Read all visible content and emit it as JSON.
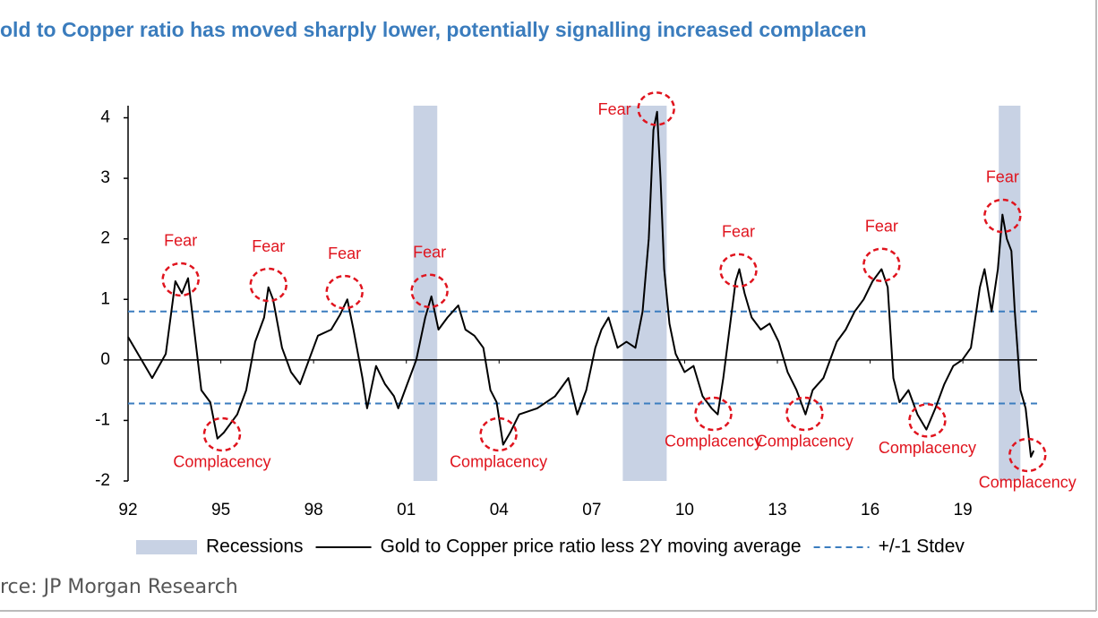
{
  "chart_data": {
    "type": "line",
    "title": "old to Copper ratio has moved sharply lower, potentially signalling increased complacen",
    "xlim": [
      1992,
      2021.4
    ],
    "xticks": [
      {
        "value": 1992,
        "label": "92"
      },
      {
        "value": 1995,
        "label": "95"
      },
      {
        "value": 1998,
        "label": "98"
      },
      {
        "value": 2001,
        "label": "01"
      },
      {
        "value": 2004,
        "label": "04"
      },
      {
        "value": 2007,
        "label": "07"
      },
      {
        "value": 2010,
        "label": "10"
      },
      {
        "value": 2013,
        "label": "13"
      },
      {
        "value": 2016,
        "label": "16"
      },
      {
        "value": 2019,
        "label": "19"
      }
    ],
    "ylim": [
      -2,
      4.2
    ],
    "yticks": [
      -2,
      -1,
      0,
      1,
      2,
      3,
      4
    ],
    "recessions": {
      "name": "Recessions",
      "color": "#c8d2e4",
      "ranges": [
        [
          2001.23,
          2002.0
        ],
        [
          2008.0,
          2009.42
        ],
        [
          2020.16,
          2020.86
        ]
      ]
    },
    "reference_lines": {
      "name": "+/-1 Stdev",
      "color": "#3b7dbf",
      "values": [
        0.8,
        -0.72
      ]
    },
    "series": [
      {
        "name": "Gold to Copper price ratio less 2Y moving average",
        "color": "#000000",
        "x": [
          1992.0,
          1992.78,
          1993.22,
          1993.53,
          1993.74,
          1993.94,
          1994.37,
          1994.66,
          1994.89,
          1995.1,
          1995.53,
          1995.82,
          1996.11,
          1996.4,
          1996.54,
          1996.69,
          1996.98,
          1997.27,
          1997.56,
          1997.85,
          1998.14,
          1998.57,
          1998.86,
          1999.09,
          1999.29,
          1999.58,
          1999.73,
          2000.02,
          2000.31,
          2000.6,
          2000.74,
          2001.03,
          2001.32,
          2001.61,
          2001.81,
          2002.04,
          2002.33,
          2002.68,
          2002.91,
          2003.2,
          2003.49,
          2003.72,
          2003.92,
          2004.13,
          2004.36,
          2004.65,
          2005.23,
          2005.81,
          2006.24,
          2006.53,
          2006.82,
          2007.11,
          2007.31,
          2007.54,
          2007.83,
          2008.12,
          2008.41,
          2008.64,
          2008.84,
          2008.99,
          2009.11,
          2009.22,
          2009.34,
          2009.51,
          2009.71,
          2010.0,
          2010.29,
          2010.58,
          2010.87,
          2011.07,
          2011.25,
          2011.45,
          2011.65,
          2011.77,
          2011.94,
          2012.17,
          2012.46,
          2012.75,
          2013.04,
          2013.33,
          2013.62,
          2013.91,
          2014.14,
          2014.49,
          2014.92,
          2015.21,
          2015.5,
          2015.79,
          2016.08,
          2016.37,
          2016.57,
          2016.75,
          2016.95,
          2017.24,
          2017.53,
          2017.82,
          2018.11,
          2018.4,
          2018.69,
          2018.98,
          2019.26,
          2019.55,
          2019.7,
          2019.93,
          2020.13,
          2020.28,
          2020.42,
          2020.57,
          2020.68,
          2020.86,
          2021.03,
          2021.2,
          2021.29
        ],
        "values": [
          0.38,
          -0.3,
          0.1,
          1.3,
          1.1,
          1.35,
          -0.5,
          -0.7,
          -1.3,
          -1.2,
          -0.9,
          -0.5,
          0.3,
          0.7,
          1.2,
          1.0,
          0.2,
          -0.2,
          -0.4,
          0.0,
          0.4,
          0.5,
          0.75,
          1.0,
          0.5,
          -0.3,
          -0.8,
          -0.1,
          -0.4,
          -0.6,
          -0.8,
          -0.4,
          0.0,
          0.7,
          1.05,
          0.5,
          0.7,
          0.9,
          0.5,
          0.4,
          0.2,
          -0.5,
          -0.7,
          -1.4,
          -1.2,
          -0.9,
          -0.8,
          -0.6,
          -0.3,
          -0.9,
          -0.5,
          0.2,
          0.5,
          0.7,
          0.2,
          0.3,
          0.2,
          0.8,
          2.0,
          3.8,
          4.1,
          3.0,
          1.5,
          0.6,
          0.1,
          -0.2,
          -0.1,
          -0.6,
          -0.8,
          -0.9,
          -0.3,
          0.5,
          1.3,
          1.5,
          1.1,
          0.7,
          0.5,
          0.6,
          0.3,
          -0.2,
          -0.5,
          -0.9,
          -0.5,
          -0.3,
          0.3,
          0.5,
          0.8,
          1.0,
          1.3,
          1.5,
          1.2,
          -0.3,
          -0.7,
          -0.5,
          -0.9,
          -1.15,
          -0.8,
          -0.4,
          -0.1,
          0.0,
          0.2,
          1.2,
          1.5,
          0.8,
          1.5,
          2.4,
          2.0,
          1.8,
          0.8,
          -0.5,
          -0.8,
          -1.6,
          -1.5
        ]
      }
    ],
    "annotations": [
      {
        "text": "Fear",
        "x": 1993.7,
        "y": 1.33
      },
      {
        "text": "Fear",
        "x": 1996.54,
        "y": 1.24
      },
      {
        "text": "Fear",
        "x": 1999.0,
        "y": 1.12
      },
      {
        "text": "Fear",
        "x": 2001.75,
        "y": 1.14
      },
      {
        "text": "Fear",
        "x": 2009.08,
        "y": 4.15
      },
      {
        "text": "Fear",
        "x": 2011.74,
        "y": 1.48
      },
      {
        "text": "Fear",
        "x": 2016.37,
        "y": 1.57
      },
      {
        "text": "Fear",
        "x": 2020.28,
        "y": 2.38
      },
      {
        "text": "Complacency",
        "x": 1995.04,
        "y": -1.23
      },
      {
        "text": "Complacency",
        "x": 2003.98,
        "y": -1.23
      },
      {
        "text": "Complacency",
        "x": 2010.93,
        "y": -0.89
      },
      {
        "text": "Complacency",
        "x": 2013.88,
        "y": -0.89
      },
      {
        "text": "Complacency",
        "x": 2017.85,
        "y": -1.0
      },
      {
        "text": "Complacency",
        "x": 2021.09,
        "y": -1.57
      }
    ]
  },
  "source": "rce: JP Morgan Research"
}
